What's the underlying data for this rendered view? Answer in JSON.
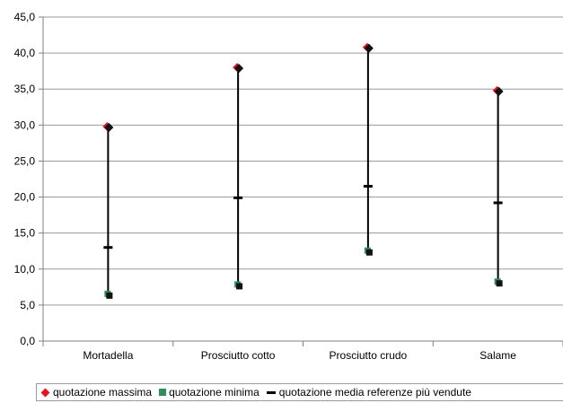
{
  "chart_data": {
    "type": "scatter",
    "categories": [
      "Mortadella",
      "Prosciutto cotto",
      "Prosciutto crudo",
      "Salame"
    ],
    "series": [
      {
        "name": "quotazione massima",
        "values": [
          29.8,
          38.0,
          40.8,
          34.8
        ],
        "color": "#e8141b",
        "marker": "diamond"
      },
      {
        "name": "quotazione minima",
        "values": [
          6.5,
          7.8,
          12.5,
          8.2
        ],
        "color": "#2f8f5c",
        "marker": "square"
      },
      {
        "name": "quotazione media referenze più vendute",
        "values": [
          13.0,
          19.9,
          21.5,
          19.2
        ],
        "color": "#000000",
        "marker": "dash"
      }
    ],
    "y_ticks": [
      "0,0",
      "5,0",
      "10,0",
      "15,0",
      "20,0",
      "25,0",
      "30,0",
      "35,0",
      "40,0",
      "45,0"
    ],
    "ylim": [
      0,
      45
    ],
    "grid": true,
    "legend_position": "bottom",
    "colors": {
      "grid": "#9a9a9a",
      "axis": "#808080",
      "range_line": "#000000"
    }
  }
}
